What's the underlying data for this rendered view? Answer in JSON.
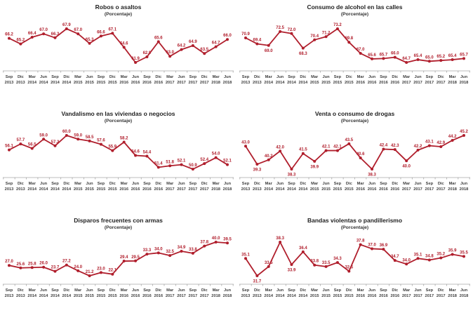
{
  "theme": {
    "background": "#FFFFFF",
    "accent_color": "#B01E2C",
    "axis_color": "#A6A6A6",
    "tick_label_color": "#404040",
    "title_color": "#1F1F1F"
  },
  "chart_data": [
    {
      "type": "line",
      "title": "Robos o asaltos",
      "subtitle": "(Porcentaje)",
      "categories": [
        "Sep 2013",
        "Dic 2013",
        "Mar 2014",
        "Jun 2014",
        "Sep 2014",
        "Dic 2014",
        "Mar 2015",
        "Jun 2015",
        "Sep 2015",
        "Dic 2015",
        "Mar 2016",
        "Jun 2016",
        "Sep 2016",
        "Dic 2016",
        "Mar 2017",
        "Jun 2017",
        "Sep 2017",
        "Dic 2017",
        "Mar 2018",
        "Jun 2018"
      ],
      "values": [
        66.2,
        65.2,
        66.4,
        67.0,
        66.3,
        67.9,
        67.0,
        65.3,
        66.6,
        67.1,
        64.6,
        61.9,
        62.9,
        65.6,
        63.0,
        64.2,
        64.9,
        63.5,
        64.7,
        66.0
      ],
      "labels_below": [],
      "grid": false,
      "legend": false,
      "data_labels": true
    },
    {
      "type": "line",
      "title": "Consumo de alcohol en las calles",
      "subtitle": "(Porcentaje)",
      "categories": [
        "Sep 2013",
        "Dic 2013",
        "Mar 2014",
        "Jun 2014",
        "Sep 2014",
        "Dic 2014",
        "Mar 2015",
        "Jun 2015",
        "Sep 2015",
        "Dic 2015",
        "Mar 2016",
        "Jun 2016",
        "Sep 2016",
        "Dic 2016",
        "Mar 2017",
        "Jun 2017",
        "Sep 2017",
        "Dic 2017",
        "Mar 2018",
        "Jun 2018"
      ],
      "values": [
        70.9,
        69.4,
        69.0,
        72.5,
        72.0,
        68.3,
        70.4,
        71.2,
        73.2,
        69.8,
        67.0,
        65.6,
        65.7,
        66.0,
        64.7,
        65.4,
        65.0,
        65.2,
        65.4,
        65.7
      ],
      "labels_below": [
        2,
        5
      ],
      "grid": false,
      "legend": false,
      "data_labels": true
    },
    {
      "type": "line",
      "title": "Vandalismo en las viviendas o negocios",
      "subtitle": "(Porcentaje)",
      "categories": [
        "Sep 2013",
        "Dic 2013",
        "Mar 2014",
        "Jun 2014",
        "Sep 2014",
        "Dic 2014",
        "Mar 2015",
        "Jun 2015",
        "Sep 2015",
        "Dic 2015",
        "Mar 2016",
        "Jun 2016",
        "Sep 2016",
        "Dic 2016",
        "Mar 2017",
        "Jun 2017",
        "Sep 2017",
        "Dic 2017",
        "Mar 2018",
        "Jun 2018"
      ],
      "values": [
        56.1,
        57.7,
        56.5,
        59.0,
        57.2,
        60.0,
        59.0,
        58.5,
        57.6,
        55.9,
        58.2,
        54.6,
        54.4,
        51.4,
        51.8,
        52.1,
        50.9,
        52.4,
        54.0,
        52.1
      ],
      "labels_below": [],
      "grid": false,
      "legend": false,
      "data_labels": true
    },
    {
      "type": "line",
      "title": "Venta o consumo de drogas",
      "subtitle": "(Porcentaje)",
      "categories": [
        "Sep 2013",
        "Dic 2013",
        "Mar 2014",
        "Jun 2014",
        "Sep 2014",
        "Dic 2014",
        "Mar 2015",
        "Jun 2015",
        "Sep 2015",
        "Dic 2015",
        "Mar 2016",
        "Jun 2016",
        "Sep 2016",
        "Dic 2016",
        "Mar 2017",
        "Jun 2017",
        "Sep 2017",
        "Dic 2017",
        "Mar 2018",
        "Jun 2018"
      ],
      "values": [
        43.0,
        39.3,
        40.2,
        42.0,
        38.3,
        41.5,
        39.9,
        42.1,
        42.1,
        43.5,
        40.6,
        38.3,
        42.4,
        42.3,
        40.0,
        42.2,
        43.1,
        42.9,
        44.2,
        45.2
      ],
      "labels_below": [
        1,
        4,
        6,
        11,
        14
      ],
      "grid": false,
      "legend": false,
      "data_labels": true
    },
    {
      "type": "line",
      "title": "Disparos frecuentes con armas",
      "subtitle": "(Porcentaje)",
      "categories": [
        "Sep 2013",
        "Dic 2013",
        "Mar 2014",
        "Jun 2014",
        "Sep 2014",
        "Dic 2014",
        "Mar 2015",
        "Jun 2015",
        "Sep 2015",
        "Dic 2015",
        "Mar 2016",
        "Jun 2016",
        "Sep 2016",
        "Dic 2016",
        "Mar 2017",
        "Jun 2017",
        "Sep 2017",
        "Dic 2017",
        "Mar 2018",
        "Jun 2018"
      ],
      "values": [
        27.0,
        25.6,
        25.8,
        26.0,
        23.7,
        27.2,
        24.0,
        21.2,
        23.0,
        22.1,
        29.4,
        29.5,
        33.3,
        34.0,
        32.5,
        34.9,
        33.8,
        37.8,
        40.0,
        39.5
      ],
      "labels_below": [],
      "grid": false,
      "legend": false,
      "data_labels": true
    },
    {
      "type": "line",
      "title": "Bandas violentas o pandillerismo",
      "subtitle": "(Porcentaje)",
      "categories": [
        "Sep 2013",
        "Dic 2013",
        "Mar 2014",
        "Jun 2014",
        "Sep 2014",
        "Dic 2014",
        "Mar 2015",
        "Jun 2015",
        "Sep 2015",
        "Dic 2015",
        "Mar 2016",
        "Jun 2016",
        "Sep 2016",
        "Dic 2016",
        "Mar 2017",
        "Jun 2017",
        "Sep 2017",
        "Dic 2017",
        "Mar 2018",
        "Jun 2018"
      ],
      "values": [
        35.1,
        31.7,
        33.5,
        38.3,
        33.9,
        36.4,
        33.8,
        33.5,
        34.3,
        32.6,
        37.8,
        37.0,
        36.9,
        34.7,
        34.0,
        35.1,
        34.8,
        35.2,
        35.9,
        35.5
      ],
      "labels_below": [
        1,
        4
      ],
      "grid": false,
      "legend": false,
      "data_labels": true
    }
  ]
}
